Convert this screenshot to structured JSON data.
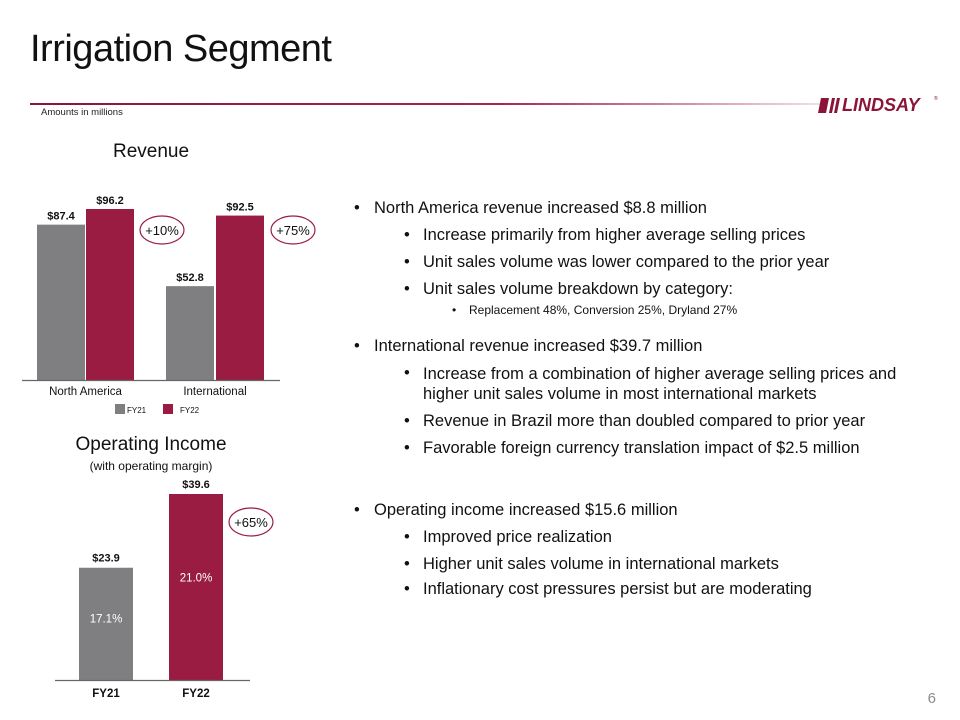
{
  "header": {
    "title": "Irrigation Segment",
    "amounts_note": "Amounts in millions",
    "logo_text": "LINDSAY",
    "logo_tm": "®"
  },
  "colors": {
    "fy21": "#7f7f82",
    "fy22": "#9a1c42",
    "accent": "#8a1538"
  },
  "chart_data": [
    {
      "type": "bar",
      "title": "Revenue",
      "categories": [
        "North America",
        "International"
      ],
      "series": [
        {
          "name": "FY21",
          "values": [
            87.4,
            52.8
          ],
          "labels": [
            "$87.4",
            "$52.8"
          ]
        },
        {
          "name": "FY22",
          "values": [
            96.2,
            92.5
          ],
          "labels": [
            "$96.2",
            "$92.5"
          ]
        }
      ],
      "annotations": [
        "+10%",
        "+75%"
      ],
      "legend": [
        "FY21",
        "FY22"
      ],
      "legend_position": "bottom",
      "ylim": [
        0,
        110
      ],
      "grid": false
    },
    {
      "type": "bar",
      "title": "Operating Income",
      "subtitle": "(with operating margin)",
      "categories": [
        "FY21",
        "FY22"
      ],
      "values": [
        23.9,
        39.6
      ],
      "labels": [
        "$23.9",
        "$39.6"
      ],
      "inner_labels": [
        "17.1%",
        "21.0%"
      ],
      "annotations": [
        "+65%"
      ],
      "ylim": [
        0,
        45
      ],
      "grid": false
    }
  ],
  "bullets": [
    {
      "level": 1,
      "text": "North America revenue increased $8.8 million"
    },
    {
      "level": 2,
      "text": "Increase primarily from higher average selling prices"
    },
    {
      "level": 2,
      "text": "Unit sales volume was lower compared to the prior year"
    },
    {
      "level": 2,
      "text": "Unit sales volume breakdown by category:"
    },
    {
      "level": 3,
      "text": "Replacement 48%, Conversion 25%, Dryland 27%"
    },
    {
      "level": 1,
      "text": "International revenue increased $39.7 million"
    },
    {
      "level": 2,
      "text": "Increase from a combination of higher average selling prices and higher unit sales volume in most international markets"
    },
    {
      "level": 2,
      "text": "Revenue in Brazil more than doubled compared to prior year"
    },
    {
      "level": 2,
      "text": "Favorable foreign currency translation impact of $2.5 million"
    },
    {
      "level": 1,
      "text": "Operating income increased $15.6 million"
    },
    {
      "level": 2,
      "text": "Improved price realization"
    },
    {
      "level": 2,
      "text": "Higher unit sales volume in international markets"
    },
    {
      "level": 2,
      "text": "Inflationary cost pressures persist but are moderating"
    }
  ],
  "page_number": "6"
}
